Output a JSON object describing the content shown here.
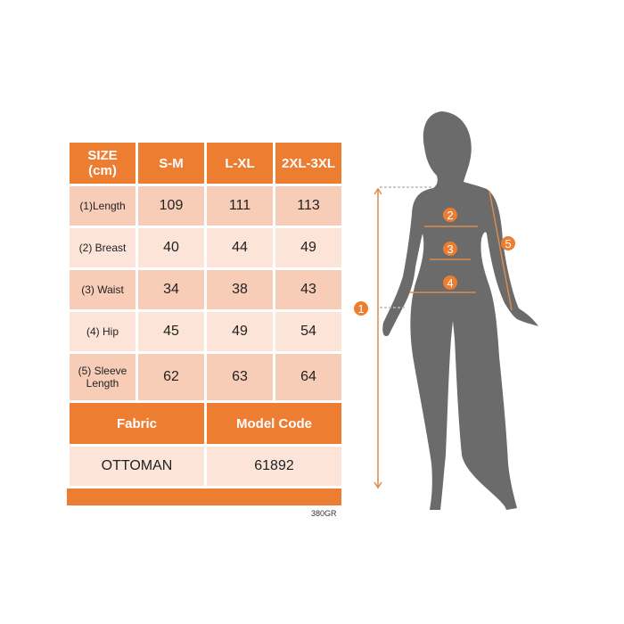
{
  "table": {
    "header": [
      "SIZE\n(cm)",
      "S-M",
      "L-XL",
      "2XL-3XL"
    ],
    "header_line1": "SIZE",
    "header_line2": "(cm)",
    "rows": [
      {
        "label": "(1)Length",
        "values": [
          "109",
          "111",
          "113"
        ]
      },
      {
        "label": "(2) Breast",
        "values": [
          "40",
          "44",
          "49"
        ]
      },
      {
        "label": "(3) Waist",
        "values": [
          "34",
          "38",
          "43"
        ]
      },
      {
        "label": "(4) Hip",
        "values": [
          "45",
          "49",
          "54"
        ]
      },
      {
        "label": "(5) Sleeve Length",
        "values": [
          "62",
          "63",
          "64"
        ]
      }
    ],
    "footer_headers": [
      "Fabric",
      "Model Code"
    ],
    "footer_values": [
      "OTTOMAN",
      "61892"
    ]
  },
  "product_code": "380GR",
  "figure_markers": [
    "1",
    "2",
    "3",
    "4",
    "5"
  ],
  "colors": {
    "accent": "#ED7D31",
    "cell_dark": "#F8CDB8",
    "cell_light": "#FCE4D8",
    "silhouette": "#6b6b6b"
  }
}
